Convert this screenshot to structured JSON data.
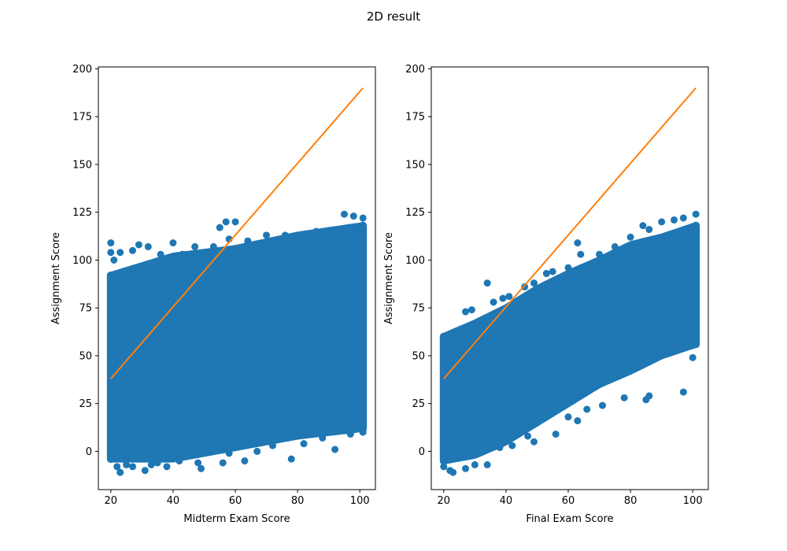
{
  "figure": {
    "title": "2D result"
  },
  "colors": {
    "scatter": "#1f77b4",
    "line": "#ff7f0e",
    "axis": "#000000"
  },
  "chart_data": [
    {
      "type": "scatter",
      "xlabel": "Midterm Exam Score",
      "ylabel": "Assignment Score",
      "xlim": [
        16,
        105
      ],
      "ylim": [
        -20,
        201
      ],
      "xticks": [
        20,
        40,
        60,
        80,
        100
      ],
      "yticks": [
        0,
        25,
        50,
        75,
        100,
        125,
        150,
        175,
        200
      ],
      "grid": false,
      "scatter_cloud": {
        "x_range": [
          20,
          101
        ],
        "y_band_lower": [
          [
            20,
            -4
          ],
          [
            40,
            -4
          ],
          [
            60,
            2
          ],
          [
            80,
            8
          ],
          [
            101,
            12
          ]
        ],
        "y_band_upper": [
          [
            20,
            92
          ],
          [
            40,
            102
          ],
          [
            60,
            106
          ],
          [
            80,
            113
          ],
          [
            101,
            118
          ]
        ]
      },
      "outliers": [
        [
          20,
          109
        ],
        [
          20,
          104
        ],
        [
          21,
          100
        ],
        [
          23,
          104
        ],
        [
          27,
          105
        ],
        [
          29,
          108
        ],
        [
          32,
          107
        ],
        [
          36,
          103
        ],
        [
          40,
          109
        ],
        [
          43,
          103
        ],
        [
          47,
          107
        ],
        [
          53,
          107
        ],
        [
          55,
          117
        ],
        [
          57,
          120
        ],
        [
          60,
          120
        ],
        [
          58,
          111
        ],
        [
          64,
          110
        ],
        [
          70,
          113
        ],
        [
          76,
          113
        ],
        [
          86,
          115
        ],
        [
          95,
          124
        ],
        [
          98,
          123
        ],
        [
          101,
          122
        ],
        [
          22,
          -8
        ],
        [
          23,
          -11
        ],
        [
          25,
          -7
        ],
        [
          27,
          -8
        ],
        [
          31,
          -10
        ],
        [
          33,
          -7
        ],
        [
          35,
          -6
        ],
        [
          38,
          -8
        ],
        [
          42,
          -5
        ],
        [
          48,
          -6
        ],
        [
          49,
          -9
        ],
        [
          56,
          -6
        ],
        [
          58,
          -1
        ],
        [
          63,
          -5
        ],
        [
          67,
          0
        ],
        [
          72,
          3
        ],
        [
          78,
          -4
        ],
        [
          82,
          4
        ],
        [
          88,
          7
        ],
        [
          92,
          1
        ],
        [
          97,
          9
        ],
        [
          101,
          10
        ]
      ],
      "fit_line": {
        "x": [
          20,
          101
        ],
        "y": [
          38,
          190
        ]
      }
    },
    {
      "type": "scatter",
      "xlabel": "Final Exam Score",
      "ylabel": "Assignment Score",
      "xlim": [
        16,
        105
      ],
      "ylim": [
        -20,
        201
      ],
      "xticks": [
        20,
        40,
        60,
        80,
        100
      ],
      "yticks": [
        0,
        25,
        50,
        75,
        100,
        125,
        150,
        175,
        200
      ],
      "grid": false,
      "scatter_cloud": {
        "x_range": [
          20,
          101
        ],
        "y_band_lower": [
          [
            20,
            -5
          ],
          [
            30,
            -2
          ],
          [
            40,
            5
          ],
          [
            50,
            15
          ],
          [
            60,
            25
          ],
          [
            70,
            35
          ],
          [
            80,
            42
          ],
          [
            90,
            50
          ],
          [
            101,
            56
          ]
        ],
        "y_band_upper": [
          [
            20,
            60
          ],
          [
            30,
            67
          ],
          [
            40,
            75
          ],
          [
            50,
            85
          ],
          [
            60,
            93
          ],
          [
            70,
            100
          ],
          [
            80,
            108
          ],
          [
            90,
            112
          ],
          [
            101,
            118
          ]
        ]
      },
      "outliers": [
        [
          20,
          -8
        ],
        [
          22,
          -10
        ],
        [
          23,
          -11
        ],
        [
          27,
          -9
        ],
        [
          30,
          -7
        ],
        [
          34,
          -7
        ],
        [
          38,
          2
        ],
        [
          42,
          3
        ],
        [
          47,
          8
        ],
        [
          49,
          5
        ],
        [
          56,
          9
        ],
        [
          60,
          18
        ],
        [
          63,
          16
        ],
        [
          66,
          22
        ],
        [
          71,
          24
        ],
        [
          78,
          28
        ],
        [
          85,
          27
        ],
        [
          86,
          29
        ],
        [
          97,
          31
        ],
        [
          100,
          49
        ],
        [
          34,
          88
        ],
        [
          27,
          73
        ],
        [
          29,
          74
        ],
        [
          36,
          78
        ],
        [
          39,
          80
        ],
        [
          41,
          81
        ],
        [
          46,
          86
        ],
        [
          49,
          88
        ],
        [
          53,
          93
        ],
        [
          55,
          94
        ],
        [
          60,
          96
        ],
        [
          63,
          109
        ],
        [
          64,
          103
        ],
        [
          70,
          103
        ],
        [
          75,
          107
        ],
        [
          80,
          112
        ],
        [
          84,
          118
        ],
        [
          86,
          116
        ],
        [
          90,
          120
        ],
        [
          94,
          121
        ],
        [
          97,
          122
        ],
        [
          101,
          124
        ]
      ],
      "fit_line": {
        "x": [
          20,
          101
        ],
        "y": [
          38,
          190
        ]
      }
    }
  ]
}
